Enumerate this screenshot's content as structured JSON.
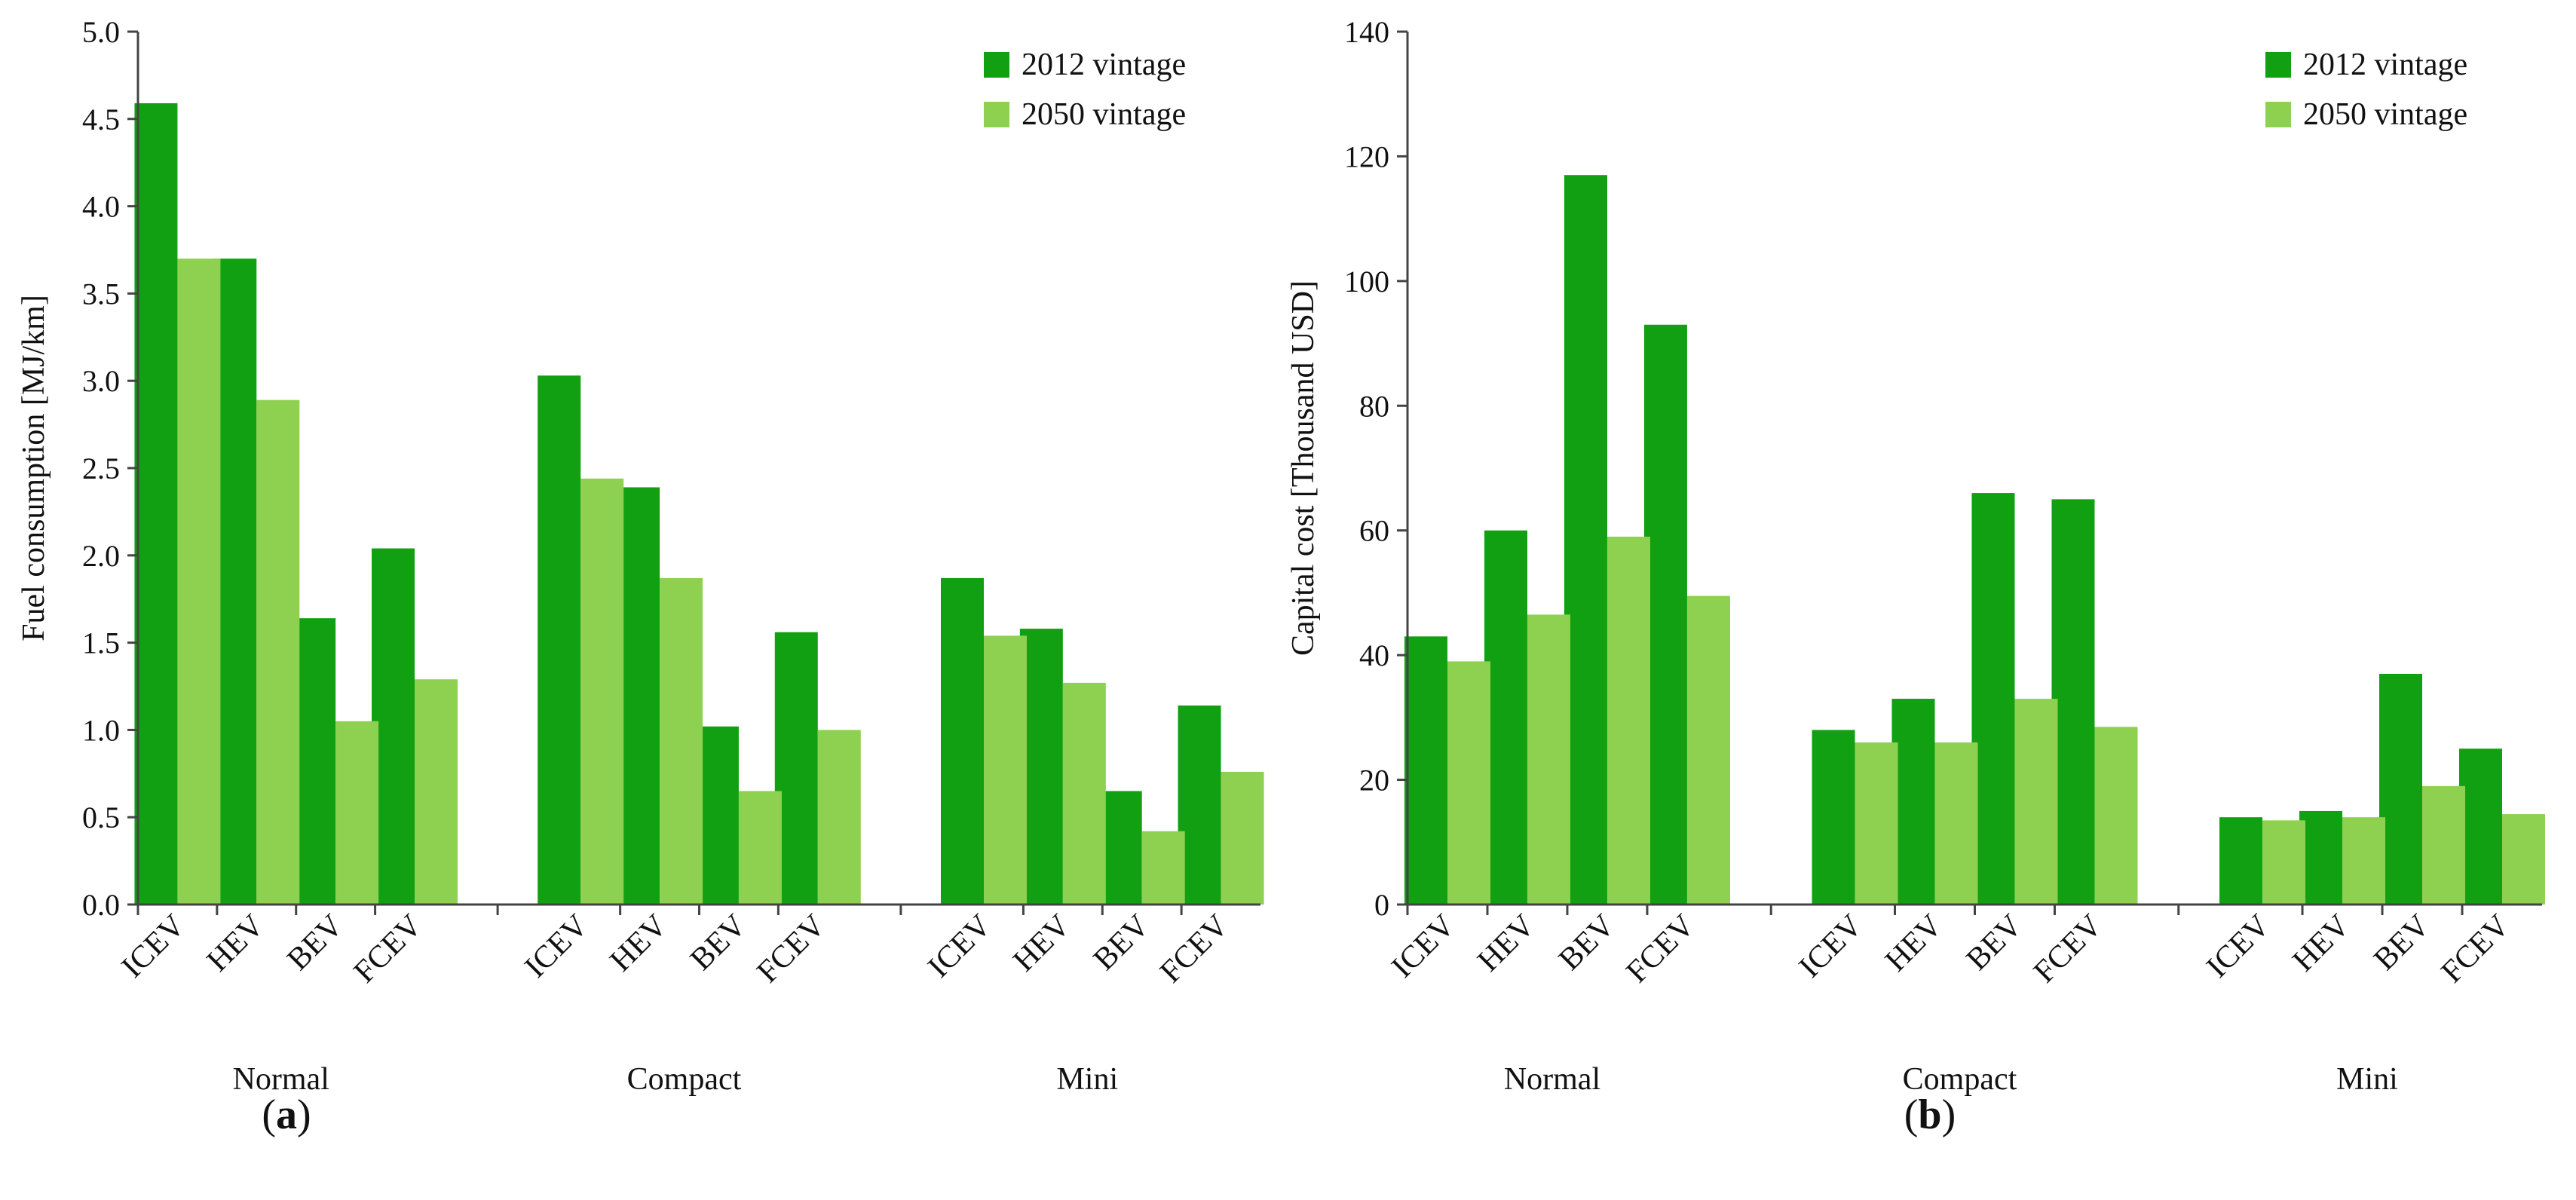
{
  "figure": {
    "background": "#ffffff"
  },
  "chart_data": [
    {
      "type": "bar",
      "panel_label": "a",
      "xlabel": "",
      "ylabel": "Fuel consumption [MJ/km]",
      "ylim": [
        0,
        5.0
      ],
      "yticks": [
        0.0,
        0.5,
        1.0,
        1.5,
        2.0,
        2.5,
        3.0,
        3.5,
        4.0,
        4.5,
        5.0
      ],
      "ytick_labels": [
        "0.0",
        "0.5",
        "1.0",
        "1.5",
        "2.0",
        "2.5",
        "3.0",
        "3.5",
        "4.0",
        "4.5",
        "5.0"
      ],
      "groups": [
        "Normal",
        "Compact",
        "Mini"
      ],
      "categories": [
        "ICEV",
        "HEV",
        "BEV",
        "FCEV",
        "ICEV",
        "HEV",
        "BEV",
        "FCEV",
        "ICEV",
        "HEV",
        "BEV",
        "FCEV"
      ],
      "series": [
        {
          "name": "2012 vintage",
          "color": "#11a011",
          "values": [
            4.59,
            3.7,
            1.64,
            2.04,
            3.03,
            2.39,
            1.02,
            1.56,
            1.87,
            1.58,
            0.65,
            1.14
          ]
        },
        {
          "name": "2050 vintage",
          "color": "#8ed150",
          "values": [
            3.7,
            2.89,
            1.05,
            1.29,
            2.44,
            1.87,
            0.65,
            1.0,
            1.54,
            1.27,
            0.42,
            0.76
          ]
        }
      ],
      "grid": false,
      "legend_position": "top-right"
    },
    {
      "type": "bar",
      "panel_label": "b",
      "xlabel": "",
      "ylabel": "Capital cost [Thousand USD]",
      "ylim": [
        0,
        140
      ],
      "yticks": [
        0,
        20,
        40,
        60,
        80,
        100,
        120,
        140
      ],
      "ytick_labels": [
        "0",
        "20",
        "40",
        "60",
        "80",
        "100",
        "120",
        "140"
      ],
      "groups": [
        "Normal",
        "Compact",
        "Mini"
      ],
      "categories": [
        "ICEV",
        "HEV",
        "BEV",
        "FCEV",
        "ICEV",
        "HEV",
        "BEV",
        "FCEV",
        "ICEV",
        "HEV",
        "BEV",
        "FCEV"
      ],
      "series": [
        {
          "name": "2012 vintage",
          "color": "#11a011",
          "values": [
            43,
            60,
            117,
            93,
            28,
            33,
            66,
            65,
            14,
            15,
            37,
            25
          ]
        },
        {
          "name": "2050 vintage",
          "color": "#8ed150",
          "values": [
            39,
            46.5,
            59,
            49.5,
            26,
            26,
            33,
            28.5,
            13.5,
            14,
            19,
            14.5
          ]
        }
      ],
      "grid": false,
      "legend_position": "top-right"
    }
  ]
}
